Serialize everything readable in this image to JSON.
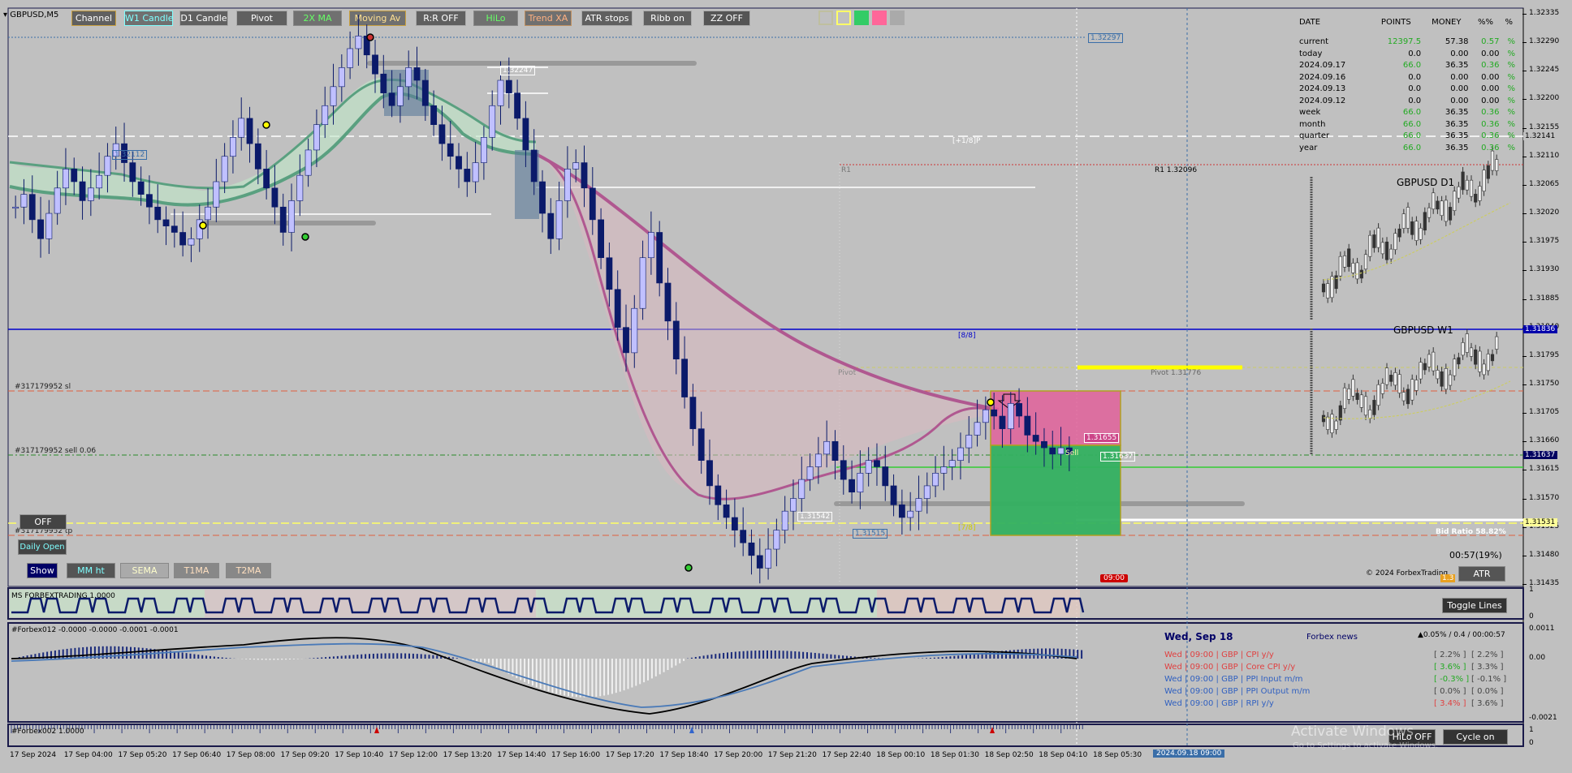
{
  "window": {
    "symbol": "GBPUSD,M5"
  },
  "toolbar": {
    "buttons": [
      {
        "label": "Channel",
        "color": "#ffffff",
        "bg": "#606060",
        "border": "#c8a040"
      },
      {
        "label": "W1 Candle",
        "color": "#7fffff",
        "bg": "#707070",
        "border": "#7fffff"
      },
      {
        "label": "D1 Candle",
        "color": "#ffffff",
        "bg": "#606060",
        "border": "#aaaaaa"
      },
      {
        "label": "Pivot",
        "color": "#ffffff",
        "bg": "#606060",
        "border": "#aaaaaa"
      },
      {
        "label": "2X MA",
        "color": "#66ff66",
        "bg": "#707070",
        "border": "#888888"
      },
      {
        "label": "Moving Av",
        "color": "#ffe090",
        "bg": "#707070",
        "border": "#c8a040"
      },
      {
        "label": "R:R OFF",
        "color": "#ffffff",
        "bg": "#606060",
        "border": "#aaaaaa"
      },
      {
        "label": "HiLo",
        "color": "#66ff66",
        "bg": "#707070",
        "border": "#888888"
      },
      {
        "label": "Trend XA",
        "color": "#ffb080",
        "bg": "#707070",
        "border": "#c09060"
      },
      {
        "label": "ATR stops",
        "color": "#ffffff",
        "bg": "#606060",
        "border": "#aaaaaa"
      },
      {
        "label": "Ribb on",
        "color": "#ffffff",
        "bg": "#606060",
        "border": "#aaaaaa"
      },
      {
        "label": "ZZ OFF",
        "color": "#ffffff",
        "bg": "#555555",
        "border": "#aaaaaa"
      }
    ],
    "swatches": [
      "#bfbf9f",
      "#ffff66",
      "#33cc66",
      "#ff6699",
      "#aaaaaa"
    ]
  },
  "stats": {
    "headers": [
      "DATE",
      "POINTS",
      "MONEY",
      "%%",
      "%"
    ],
    "rows": [
      {
        "date": "current",
        "points": "12397.5",
        "money": "57.38",
        "pct": "0.57",
        "unit": "%"
      },
      {
        "date": "today",
        "points": "0.0",
        "money": "0.00",
        "pct": "0.00",
        "unit": "%"
      },
      {
        "date": "2024.09.17",
        "points": "66.0",
        "money": "36.35",
        "pct": "0.36",
        "unit": "%"
      },
      {
        "date": "2024.09.16",
        "points": "0.0",
        "money": "0.00",
        "pct": "0.00",
        "unit": "%"
      },
      {
        "date": "2024.09.13",
        "points": "0.0",
        "money": "0.00",
        "pct": "0.00",
        "unit": "%"
      },
      {
        "date": "2024.09.12",
        "points": "0.0",
        "money": "0.00",
        "pct": "0.00",
        "unit": "%"
      },
      {
        "date": "week",
        "points": "66.0",
        "money": "36.35",
        "pct": "0.36",
        "unit": "%"
      },
      {
        "date": "month",
        "points": "66.0",
        "money": "36.35",
        "pct": "0.36",
        "unit": "%"
      },
      {
        "date": "quarter",
        "points": "66.0",
        "money": "36.35",
        "pct": "0.36",
        "unit": "%"
      },
      {
        "date": "year",
        "points": "66.0",
        "money": "36.35",
        "pct": "0.36",
        "unit": "%"
      }
    ]
  },
  "labels": {
    "level_1_32297": "1.32297",
    "level_1_32247": "1.32247",
    "level_1_32112": "1.32112",
    "plus_1_8": "[+1/8]P",
    "r1_left": "R1",
    "r1_right": "R1 1.32096",
    "eight_eight": "[8/8]",
    "pivot_left": "Pivot",
    "pivot_right": "Pivot 1.31776",
    "order_sl": "#317179952 sl",
    "order_sell": "#317179952 sell 0.06",
    "order_tp": "#317179952 tp",
    "level_1_31542": "1.31542",
    "level_1_31515": "1.31515",
    "level_1_31655": "1.31655",
    "level_1_31637": "1.31637",
    "sell_tag": "Sell",
    "seven_eight": "[7/8]",
    "bid_ratio": "Bid Ratio 58.82%",
    "countdown": "00:57(19%)",
    "copyright": "© 2024 ForbexTrading",
    "time_marker": "09:00",
    "mini_price": "1.3",
    "gbpusd_d1": "GBPUSD D1",
    "gbpusd_w1": "GBPUSD W1",
    "watermark": "Activate Windows",
    "watermark2": "Go to Settings to activate Windows."
  },
  "left_buttons": {
    "off": "OFF",
    "daily_open": "Daily Open",
    "show": "Show",
    "mm_ht": "MM ht",
    "sema": "SEMA",
    "t1ma": "T1MA",
    "t2ma": "T2MA"
  },
  "right_buttons": {
    "atr": "ATR",
    "toggle_lines": "Toggle Lines",
    "hilo_off": "HiLo OFF",
    "cycle_on": "Cycle on"
  },
  "sub1": {
    "title": "MS FORBEXTRADING 1.0000",
    "axis": [
      "1",
      "0"
    ]
  },
  "sub2": {
    "title": "#Forbex012 -0.0000 -0.0000 -0.0001 -0.0001",
    "axis": [
      "0.0011",
      "0.00",
      "-0.0021"
    ]
  },
  "sub3": {
    "title": "#Forbex002 1.0000",
    "axis": [
      "1",
      "0"
    ]
  },
  "news": {
    "date": "Wed, Sep 18",
    "source": "Forbex news",
    "spread": "▲0.05% / 0.4 / 00:00:57",
    "items": [
      {
        "day": "Wed",
        "time": "09:00",
        "cur": "GBP",
        "name": "CPI y/y",
        "actual": "[ 2.2% ]",
        "forecast": "[ 2.2% ]",
        "color": "#e04040",
        "acolor": "#444444"
      },
      {
        "day": "Wed",
        "time": "09:00",
        "cur": "GBP",
        "name": "Core CPI y/y",
        "actual": "[ 3.6% ]",
        "forecast": "[ 3.3% ]",
        "color": "#e04040",
        "acolor": "#22aa22"
      },
      {
        "day": "Wed",
        "time": "09:00",
        "cur": "GBP",
        "name": "PPI Input m/m",
        "actual": "[ -0.3% ]",
        "forecast": "[ -0.1% ]",
        "color": "#3060c0",
        "acolor": "#22aa22"
      },
      {
        "day": "Wed",
        "time": "09:00",
        "cur": "GBP",
        "name": "PPI Output m/m",
        "actual": "[ 0.0% ]",
        "forecast": "[ 0.0% ]",
        "color": "#3060c0",
        "acolor": "#444444"
      },
      {
        "day": "Wed",
        "time": "09:00",
        "cur": "GBP",
        "name": "RPI y/y",
        "actual": "[ 3.4% ]",
        "forecast": "[ 3.6% ]",
        "color": "#3060c0",
        "acolor": "#e04040"
      }
    ]
  },
  "chart_data": {
    "type": "candlestick",
    "symbol": "GBPUSD",
    "timeframe": "M5",
    "ylim": [
      1.31435,
      1.32335
    ],
    "y_ticks": [
      "1.32335",
      "1.32290",
      "1.32245",
      "1.32200",
      "1.32155",
      "1.32110",
      "1.32065",
      "1.32020",
      "1.31975",
      "1.31930",
      "1.31885",
      "1.31840",
      "1.31795",
      "1.31750",
      "1.31705",
      "1.31660",
      "1.31615",
      "1.31570",
      "1.31525",
      "1.31480",
      "1.31435"
    ],
    "x_ticks": [
      "17 Sep 2024",
      "17 Sep 04:00",
      "17 Sep 05:20",
      "17 Sep 06:40",
      "17 Sep 08:00",
      "17 Sep 09:20",
      "17 Sep 10:40",
      "17 Sep 12:00",
      "17 Sep 13:20",
      "17 Sep 14:40",
      "17 Sep 16:00",
      "17 Sep 17:20",
      "17 Sep 18:40",
      "17 Sep 20:00",
      "17 Sep 21:20",
      "17 Sep 22:40",
      "18 Sep 00:10",
      "18 Sep 01:30",
      "18 Sep 02:50",
      "18 Sep 04:10",
      "18 Sep 05:30"
    ],
    "cursor_time": "2024.09.18 09:00",
    "price_tags": [
      {
        "label": "1.32141",
        "value": 1.32141,
        "bg": "#c0c0c0",
        "fg": "#000"
      },
      {
        "label": "1.31836",
        "value": 1.31836,
        "bg": "#0000aa",
        "fg": "#fff"
      },
      {
        "label": "1.31637",
        "value": 1.31637,
        "bg": "#000060",
        "fg": "#fff"
      },
      {
        "label": "1.31531",
        "value": 1.31531,
        "bg": "#ffff99",
        "fg": "#000"
      }
    ],
    "closes": [
      1.3203,
      1.3205,
      1.3201,
      1.3198,
      1.3202,
      1.3206,
      1.3209,
      1.3207,
      1.3204,
      1.3206,
      1.3208,
      1.3211,
      1.3213,
      1.321,
      1.3207,
      1.3205,
      1.3203,
      1.3201,
      1.32,
      1.3199,
      1.3197,
      1.3198,
      1.3201,
      1.3203,
      1.3207,
      1.3211,
      1.3214,
      1.3217,
      1.3213,
      1.3209,
      1.3206,
      1.3203,
      1.3199,
      1.3204,
      1.3208,
      1.3212,
      1.3216,
      1.3219,
      1.3222,
      1.3225,
      1.3228,
      1.323,
      1.3227,
      1.3224,
      1.3221,
      1.3219,
      1.3222,
      1.3225,
      1.3223,
      1.3219,
      1.3216,
      1.3213,
      1.3211,
      1.3209,
      1.3207,
      1.321,
      1.3214,
      1.3219,
      1.3223,
      1.3221,
      1.3217,
      1.3212,
      1.3207,
      1.3202,
      1.3198,
      1.3204,
      1.3209,
      1.321,
      1.3206,
      1.3201,
      1.3195,
      1.319,
      1.3184,
      1.318,
      1.3187,
      1.3195,
      1.3199,
      1.3191,
      1.3185,
      1.3179,
      1.3173,
      1.3168,
      1.3163,
      1.3159,
      1.3156,
      1.3154,
      1.3152,
      1.315,
      1.3148,
      1.3146,
      1.3149,
      1.3152,
      1.3155,
      1.3157,
      1.316,
      1.3162,
      1.3164,
      1.3166,
      1.3163,
      1.316,
      1.3158,
      1.3161,
      1.3163,
      1.3162,
      1.3159,
      1.3156,
      1.3154,
      1.3155,
      1.3157,
      1.3159,
      1.3161,
      1.3162,
      1.3163,
      1.3165,
      1.3167,
      1.3169,
      1.3171,
      1.317,
      1.3168,
      1.3172,
      1.317,
      1.3167,
      1.3166,
      1.3165,
      1.3164,
      1.3165,
      1.3164
    ]
  }
}
